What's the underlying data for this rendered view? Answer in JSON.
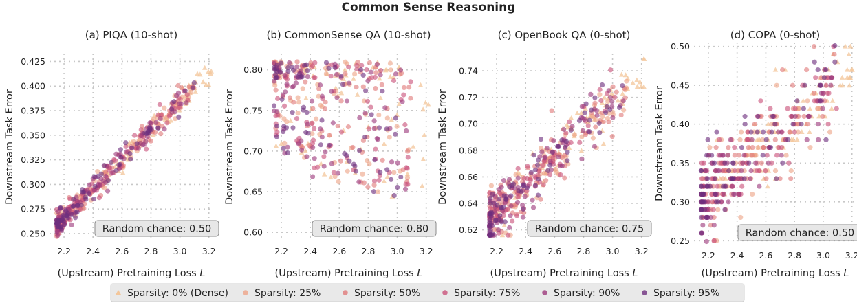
{
  "figure_title": "Common Sense Reasoning",
  "chart_data": [
    {
      "type": "scatter",
      "title": "(a) PIQA (10-shot)",
      "xlabel": "(Upstream) Pretraining Loss",
      "xlabel_var": "L",
      "ylabel": "Downstream Task Error",
      "xlim": [
        2.1,
        3.23
      ],
      "ylim": [
        0.243,
        0.433
      ],
      "xticks": [
        "2.2",
        "2.4",
        "2.6",
        "2.8",
        "3.0",
        "3.2"
      ],
      "yticks": [
        "0.250",
        "0.275",
        "0.300",
        "0.325",
        "0.350",
        "0.375",
        "0.400",
        "0.425"
      ],
      "random_chance": "Random chance: 0.50",
      "trend": {
        "x": [
          2.15,
          3.2
        ],
        "y": [
          0.258,
          0.415
        ]
      },
      "spread": 0.008
    },
    {
      "type": "scatter",
      "title": "(b) CommonSense QA (10-shot)",
      "xlabel": "(Upstream) Pretraining Loss",
      "xlabel_var": "L",
      "ylabel": "Downstream Task Error",
      "xlim": [
        2.1,
        3.23
      ],
      "ylim": [
        0.59,
        0.82
      ],
      "xticks": [
        "2.2",
        "2.4",
        "2.6",
        "2.8",
        "3.0",
        "3.2"
      ],
      "yticks": [
        "0.60",
        "0.65",
        "0.70",
        "0.75",
        "0.80"
      ],
      "random_chance": "Random chance: 0.80",
      "trend": {
        "x": [
          2.15,
          3.2
        ],
        "y": [
          0.77,
          0.72
        ]
      },
      "spread": 0.05
    },
    {
      "type": "scatter",
      "title": "(c) OpenBook QA (0-shot)",
      "xlabel": "(Upstream) Pretraining Loss",
      "xlabel_var": "L",
      "ylabel": "Downstream Task Error",
      "xlim": [
        2.1,
        3.23
      ],
      "ylim": [
        0.612,
        0.753
      ],
      "xticks": [
        "2.2",
        "2.4",
        "2.6",
        "2.8",
        "3.0",
        "3.2"
      ],
      "yticks": [
        "0.62",
        "0.64",
        "0.66",
        "0.68",
        "0.70",
        "0.72",
        "0.74"
      ],
      "random_chance": "Random chance: 0.75",
      "trend": {
        "x": [
          2.15,
          3.2
        ],
        "y": [
          0.628,
          0.738
        ]
      },
      "spread": 0.014
    },
    {
      "type": "scatter",
      "title": "(d) COPA (0-shot)",
      "xlabel": "(Upstream) Pretraining Loss",
      "xlabel_var": "L",
      "ylabel": "Downstream Task Error",
      "xlim": [
        2.1,
        3.23
      ],
      "ylim": [
        0.245,
        0.505
      ],
      "xticks": [
        "2.2",
        "2.4",
        "2.6",
        "2.8",
        "3.0",
        "3.2"
      ],
      "yticks": [
        "0.25",
        "0.30",
        "0.35",
        "0.40",
        "0.45",
        "0.50"
      ],
      "random_chance": "Random chance: 0.50",
      "trend": {
        "x": [
          2.15,
          3.2
        ],
        "y": [
          0.3,
          0.47
        ]
      },
      "spread": 0.035,
      "quantize": 0.01
    }
  ],
  "legend": [
    {
      "label": "Sparsity: 0% (Dense)",
      "marker": "triangle",
      "color": "#f3c69a"
    },
    {
      "label": "Sparsity: 25%",
      "marker": "circle",
      "color": "#eea488"
    },
    {
      "label": "Sparsity: 50%",
      "marker": "circle",
      "color": "#e07b7a"
    },
    {
      "label": "Sparsity: 75%",
      "marker": "circle",
      "color": "#c9527a"
    },
    {
      "label": "Sparsity: 90%",
      "marker": "circle",
      "color": "#9c3a7c"
    },
    {
      "label": "Sparsity: 95%",
      "marker": "circle",
      "color": "#6e2f7e"
    }
  ]
}
